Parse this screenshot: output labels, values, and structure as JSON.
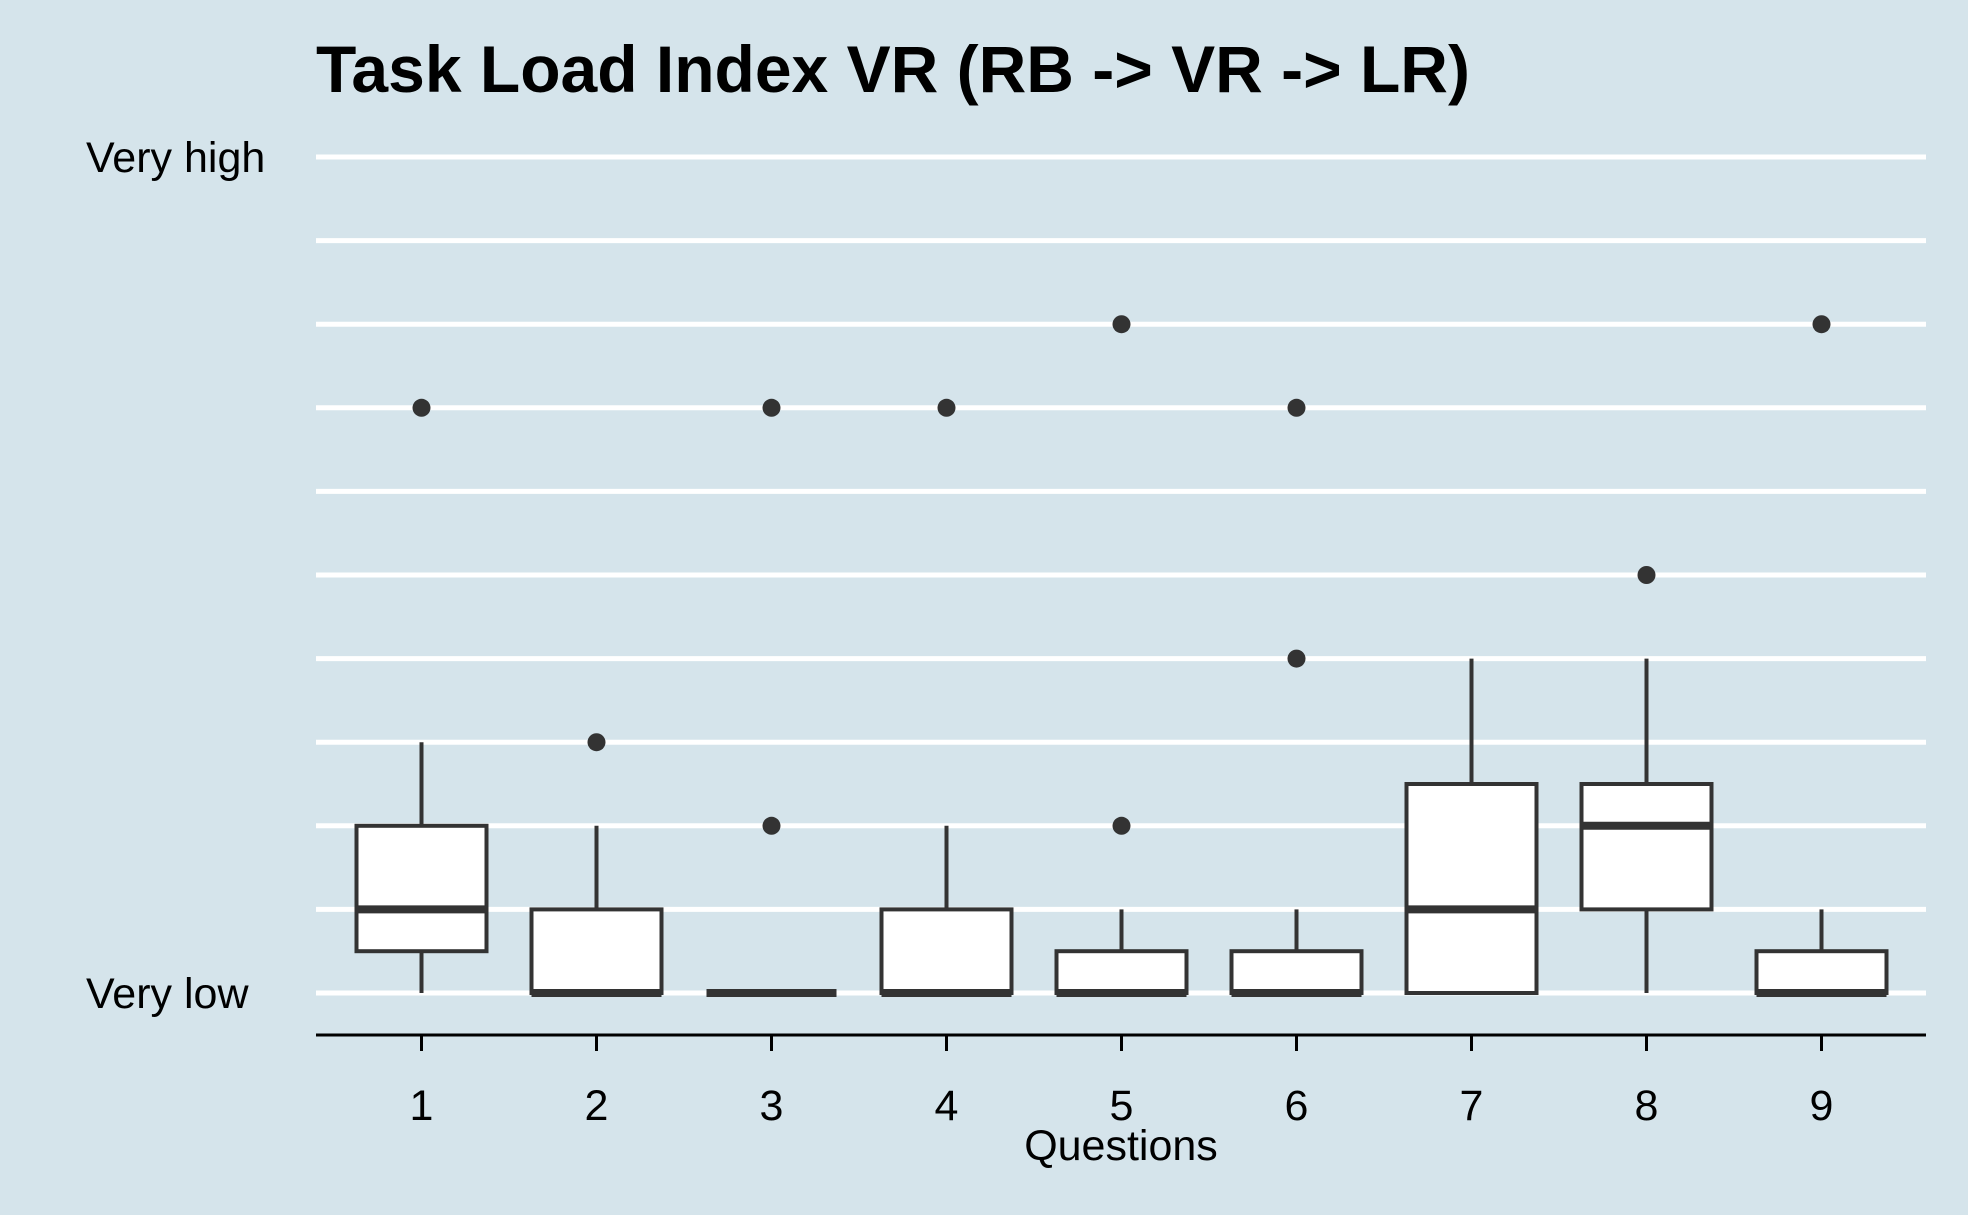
{
  "chart_data": {
    "type": "boxplot",
    "title": "Task Load Index VR (RB -> VR -> LR)",
    "xlabel": "Questions",
    "ylabel": "",
    "categories": [
      "1",
      "2",
      "3",
      "4",
      "5",
      "6",
      "7",
      "8",
      "9"
    ],
    "y_tick_labels": [
      {
        "value": 0,
        "label": "Very low"
      },
      {
        "value": 10,
        "label": "Very high"
      }
    ],
    "ylim": [
      -0.5,
      10
    ],
    "grid_values": [
      0,
      1,
      2,
      3,
      4,
      5,
      6,
      7,
      8,
      9,
      10
    ],
    "grid": true,
    "legend": "none",
    "boxes": [
      {
        "category": "1",
        "low": 0,
        "q1": 0.5,
        "median": 1,
        "q3": 2,
        "high": 3,
        "outliers": [
          7
        ]
      },
      {
        "category": "2",
        "low": 0,
        "q1": 0,
        "median": 0,
        "q3": 1,
        "high": 2,
        "outliers": [
          3
        ]
      },
      {
        "category": "3",
        "low": 0,
        "q1": 0,
        "median": 0,
        "q3": 0,
        "high": 0,
        "outliers": [
          2,
          7
        ]
      },
      {
        "category": "4",
        "low": 0,
        "q1": 0,
        "median": 0,
        "q3": 1,
        "high": 2,
        "outliers": [
          7
        ]
      },
      {
        "category": "5",
        "low": 0,
        "q1": 0,
        "median": 0,
        "q3": 0.5,
        "high": 1,
        "outliers": [
          2,
          8
        ]
      },
      {
        "category": "6",
        "low": 0,
        "q1": 0,
        "median": 0,
        "q3": 0.5,
        "high": 1,
        "outliers": [
          4,
          7
        ]
      },
      {
        "category": "7",
        "low": 0,
        "q1": 0,
        "median": 1,
        "q3": 2.5,
        "high": 4,
        "outliers": []
      },
      {
        "category": "8",
        "low": 0,
        "q1": 1,
        "median": 2,
        "q3": 2.5,
        "high": 4,
        "outliers": [
          5
        ]
      },
      {
        "category": "9",
        "low": 0,
        "q1": 0,
        "median": 0,
        "q3": 0.5,
        "high": 1,
        "outliers": [
          8
        ]
      }
    ],
    "colors": {
      "background": "#d5e4eb",
      "grid": "#ffffff",
      "box_fill": "#ffffff",
      "box_stroke": "#333333",
      "outlier": "#333333",
      "axis": "#000000"
    }
  }
}
